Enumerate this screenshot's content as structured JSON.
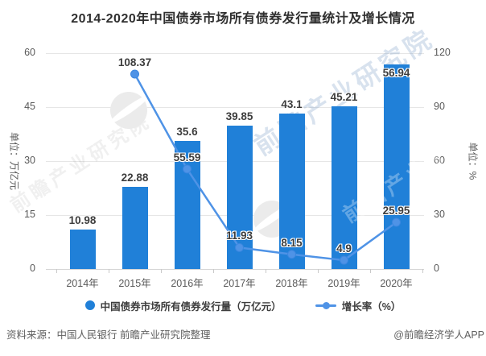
{
  "title": "2014-2020年中国债券市场所有债券发行量统计及增长情况",
  "chart_data": {
    "type": "combo-bar-line",
    "categories": [
      "2014年",
      "2015年",
      "2016年",
      "2017年",
      "2018年",
      "2019年",
      "2020年"
    ],
    "series": [
      {
        "name": "中国债券市场所有债券发行量（万亿元）",
        "type": "bar",
        "axis": "left",
        "values": [
          10.98,
          22.88,
          35.6,
          39.85,
          43.1,
          45.21,
          56.94
        ]
      },
      {
        "name": "增长率（%）",
        "type": "line",
        "axis": "right",
        "values": [
          null,
          108.37,
          55.59,
          11.93,
          8.15,
          4.9,
          25.95
        ]
      }
    ],
    "left_axis": {
      "title": "单位：万亿元",
      "min": 0,
      "max": 60,
      "ticks": [
        0,
        15,
        30,
        45,
        60
      ]
    },
    "right_axis": {
      "title": "单位：%",
      "min": 0,
      "max": 120,
      "ticks": [
        0,
        30,
        60,
        90,
        120
      ]
    },
    "grid": true,
    "legend_position": "bottom"
  },
  "footer": {
    "source": "资料来源：中国人民银行 前瞻产业研究院整理",
    "credit": "@前瞻经济学人APP"
  },
  "watermark": {
    "text": "前瞻产业研究院"
  },
  "colors": {
    "bar": "#2080d8",
    "line": "#4f93e6",
    "marker_stroke": "#3b87e0",
    "grid": "#e6e6e6",
    "axis_text": "#595959",
    "label_text": "#3d3d3d"
  }
}
